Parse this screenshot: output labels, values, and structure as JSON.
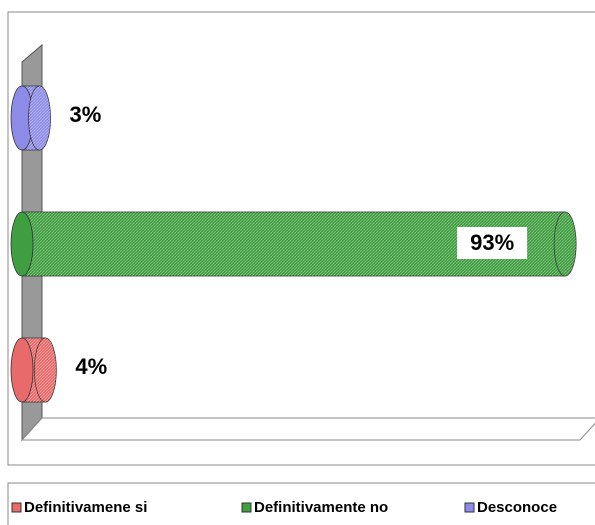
{
  "chart_data": {
    "type": "bar3d",
    "orientation": "horizontal",
    "xlim": [
      0,
      100
    ],
    "series": [
      {
        "name": "Definitivamene si",
        "color": "#e86a6a",
        "values": [
          4
        ],
        "value_labels": [
          "4%"
        ]
      },
      {
        "name": "Definitivamente no",
        "color": "#3f9e3f",
        "values": [
          93
        ],
        "value_labels": [
          "93%"
        ]
      },
      {
        "name": "Desconoce",
        "color": "#8c8ce8",
        "values": [
          3
        ],
        "value_labels": [
          "3%"
        ]
      }
    ],
    "legend": "bottom"
  }
}
